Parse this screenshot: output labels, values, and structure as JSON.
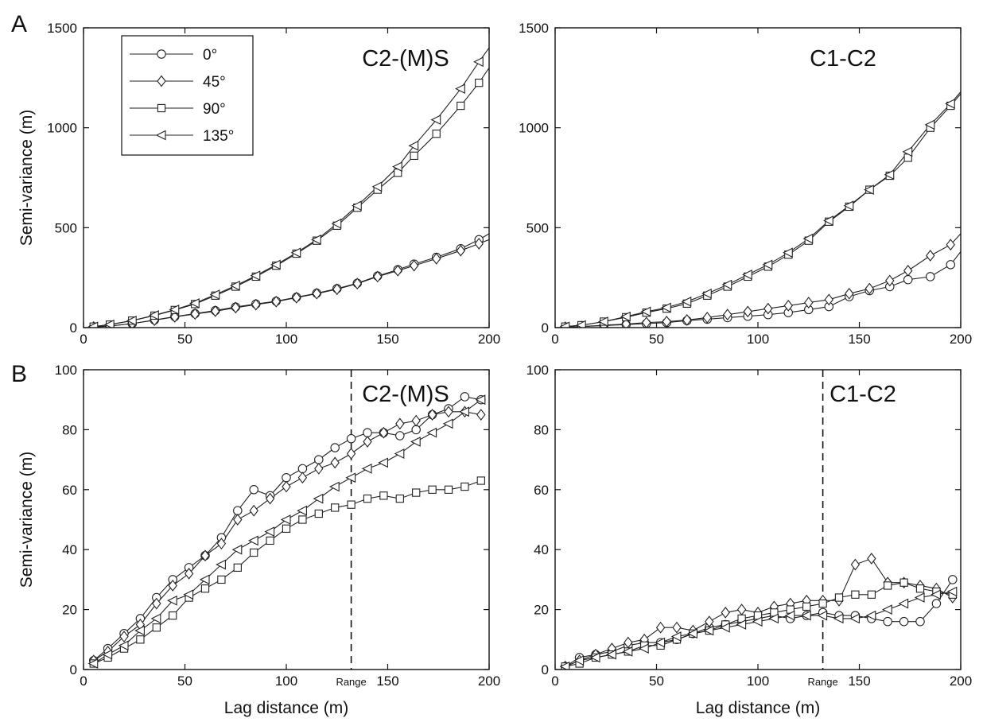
{
  "panel_labels": [
    "A",
    "B"
  ],
  "legend": {
    "entries": [
      {
        "label": "0°",
        "marker": "circle"
      },
      {
        "label": "45°",
        "marker": "diamond"
      },
      {
        "label": "90°",
        "marker": "square"
      },
      {
        "label": "135°",
        "marker": "triangle-left"
      }
    ]
  },
  "chart_data": [
    {
      "type": "line",
      "panel": "A",
      "title": "C2-(M)S",
      "xlabel": "",
      "ylabel": "Semi-variance (m)",
      "xlim": [
        0,
        200
      ],
      "ylim": [
        0,
        1500
      ],
      "xticks": [
        "0",
        "50",
        "100",
        "150",
        "200"
      ],
      "yticks": [
        "0",
        "500",
        "1000",
        "1500"
      ],
      "legend_position": "top-left",
      "series": [
        {
          "name": "0°",
          "marker": "circle",
          "x": [
            5,
            13,
            24,
            35,
            45,
            55,
            65,
            75,
            85,
            95,
            105,
            115,
            125,
            135,
            145,
            155,
            163,
            174,
            186,
            195,
            200
          ],
          "y": [
            3,
            8,
            20,
            38,
            55,
            70,
            85,
            103,
            118,
            132,
            152,
            172,
            195,
            222,
            258,
            290,
            318,
            352,
            395,
            440,
            470
          ]
        },
        {
          "name": "45°",
          "marker": "diamond",
          "x": [
            5,
            13,
            24,
            35,
            45,
            55,
            65,
            75,
            85,
            95,
            105,
            115,
            125,
            135,
            145,
            155,
            163,
            174,
            186,
            195,
            200
          ],
          "y": [
            3,
            8,
            20,
            37,
            54,
            68,
            82,
            100,
            115,
            130,
            150,
            170,
            192,
            220,
            255,
            285,
            310,
            345,
            385,
            420,
            440
          ]
        },
        {
          "name": "90°",
          "marker": "square",
          "x": [
            5,
            13,
            24,
            35,
            45,
            55,
            65,
            75,
            85,
            95,
            105,
            115,
            125,
            135,
            145,
            155,
            163,
            174,
            186,
            195,
            200
          ],
          "y": [
            5,
            15,
            35,
            60,
            88,
            118,
            160,
            205,
            255,
            310,
            370,
            435,
            510,
            600,
            690,
            775,
            860,
            970,
            1110,
            1225,
            1300
          ]
        },
        {
          "name": "135°",
          "marker": "triangle-left",
          "x": [
            5,
            13,
            24,
            35,
            45,
            55,
            65,
            75,
            85,
            95,
            105,
            115,
            125,
            135,
            145,
            155,
            163,
            174,
            186,
            195,
            200
          ],
          "y": [
            5,
            15,
            35,
            62,
            90,
            122,
            165,
            210,
            260,
            315,
            375,
            440,
            520,
            610,
            705,
            805,
            910,
            1040,
            1195,
            1330,
            1400
          ]
        }
      ]
    },
    {
      "type": "line",
      "panel": "A",
      "title": "C1-C2",
      "xlabel": "",
      "ylabel": "",
      "xlim": [
        0,
        200
      ],
      "ylim": [
        0,
        1500
      ],
      "xticks": [
        "0",
        "50",
        "100",
        "150",
        "200"
      ],
      "yticks": [
        "0",
        "500",
        "1000",
        "1500"
      ],
      "series": [
        {
          "name": "0°",
          "marker": "circle",
          "x": [
            5,
            13,
            24,
            35,
            45,
            55,
            65,
            75,
            85,
            95,
            105,
            115,
            125,
            135,
            145,
            155,
            165,
            174,
            185,
            195,
            200
          ],
          "y": [
            2,
            5,
            10,
            15,
            20,
            25,
            35,
            42,
            50,
            57,
            65,
            75,
            90,
            105,
            155,
            185,
            205,
            240,
            255,
            315,
            380
          ]
        },
        {
          "name": "45°",
          "marker": "diamond",
          "x": [
            5,
            13,
            24,
            35,
            45,
            55,
            65,
            75,
            85,
            95,
            105,
            115,
            125,
            135,
            145,
            155,
            165,
            174,
            185,
            195,
            200
          ],
          "y": [
            2,
            5,
            12,
            18,
            25,
            30,
            38,
            50,
            65,
            80,
            95,
            110,
            125,
            140,
            170,
            195,
            235,
            285,
            360,
            415,
            470
          ]
        },
        {
          "name": "90°",
          "marker": "square",
          "x": [
            5,
            13,
            24,
            35,
            45,
            55,
            65,
            75,
            85,
            95,
            105,
            115,
            125,
            135,
            145,
            155,
            165,
            174,
            185,
            195,
            200
          ],
          "y": [
            5,
            12,
            30,
            52,
            75,
            95,
            120,
            160,
            205,
            255,
            305,
            365,
            435,
            530,
            605,
            690,
            760,
            850,
            1000,
            1110,
            1170
          ]
        },
        {
          "name": "135°",
          "marker": "triangle-left",
          "x": [
            5,
            13,
            24,
            35,
            45,
            55,
            65,
            75,
            85,
            95,
            105,
            115,
            125,
            135,
            145,
            155,
            165,
            174,
            185,
            195,
            200
          ],
          "y": [
            5,
            12,
            30,
            55,
            80,
            100,
            130,
            170,
            215,
            265,
            315,
            375,
            445,
            535,
            610,
            690,
            765,
            880,
            1015,
            1120,
            1180
          ]
        }
      ]
    },
    {
      "type": "line",
      "panel": "B",
      "title": "C2-(M)S",
      "xlabel": "Lag distance (m)",
      "ylabel": "Semi-variance (m)",
      "xlim": [
        0,
        200
      ],
      "ylim": [
        0,
        100
      ],
      "xticks": [
        "0",
        "50",
        "100",
        "Range",
        "150",
        "200"
      ],
      "yticks": [
        "0",
        "20",
        "40",
        "60",
        "80",
        "100"
      ],
      "range_marker": {
        "x": 132,
        "label": "Range"
      },
      "series": [
        {
          "name": "0°",
          "marker": "circle",
          "x": [
            5,
            12,
            20,
            28,
            36,
            44,
            52,
            60,
            68,
            76,
            84,
            92,
            100,
            108,
            116,
            124,
            132,
            140,
            148,
            156,
            164,
            172,
            180,
            188,
            196
          ],
          "y": [
            3,
            7,
            12,
            17,
            24,
            30,
            34,
            38,
            44,
            53,
            60,
            58,
            64,
            67,
            70,
            74,
            77,
            79,
            79,
            78,
            80,
            85,
            87,
            91,
            90
          ]
        },
        {
          "name": "45°",
          "marker": "diamond",
          "x": [
            5,
            12,
            20,
            28,
            36,
            44,
            52,
            60,
            68,
            76,
            84,
            92,
            100,
            108,
            116,
            124,
            132,
            140,
            148,
            156,
            164,
            172,
            180,
            188,
            196
          ],
          "y": [
            3,
            6,
            11,
            15,
            22,
            28,
            32,
            38,
            42,
            50,
            53,
            57,
            61,
            64,
            67,
            69,
            72,
            76,
            79,
            82,
            83,
            85,
            86,
            86,
            85
          ]
        },
        {
          "name": "90°",
          "marker": "square",
          "x": [
            5,
            12,
            20,
            28,
            36,
            44,
            52,
            60,
            68,
            76,
            84,
            92,
            100,
            108,
            116,
            124,
            132,
            140,
            148,
            156,
            164,
            172,
            180,
            188,
            196
          ],
          "y": [
            2,
            4,
            7,
            10,
            14,
            18,
            24,
            27,
            30,
            34,
            39,
            43,
            47,
            50,
            52,
            54,
            55,
            57,
            58,
            57,
            59,
            60,
            60,
            61,
            63
          ]
        },
        {
          "name": "135°",
          "marker": "triangle-left",
          "x": [
            5,
            12,
            20,
            28,
            36,
            44,
            52,
            60,
            68,
            76,
            84,
            92,
            100,
            108,
            116,
            124,
            132,
            140,
            148,
            156,
            164,
            172,
            180,
            188,
            196
          ],
          "y": [
            2,
            5,
            8,
            13,
            17,
            23,
            25,
            30,
            35,
            40,
            43,
            46,
            50,
            53,
            57,
            61,
            64,
            67,
            69,
            72,
            76,
            79,
            82,
            86,
            90
          ]
        }
      ]
    },
    {
      "type": "line",
      "panel": "B",
      "title": "C1-C2",
      "xlabel": "Lag distance (m)",
      "ylabel": "",
      "xlim": [
        0,
        200
      ],
      "ylim": [
        0,
        100
      ],
      "xticks": [
        "0",
        "50",
        "100",
        "Range",
        "150",
        "200"
      ],
      "yticks": [
        "0",
        "20",
        "40",
        "60",
        "80",
        "100"
      ],
      "range_marker": {
        "x": 132,
        "label": "Range"
      },
      "series": [
        {
          "name": "0°",
          "marker": "circle",
          "x": [
            5,
            12,
            20,
            28,
            36,
            44,
            52,
            60,
            68,
            76,
            84,
            92,
            100,
            108,
            116,
            124,
            132,
            140,
            148,
            156,
            164,
            172,
            180,
            188,
            196
          ],
          "y": [
            1,
            4,
            5,
            6,
            8,
            9,
            9,
            10,
            12,
            14,
            15,
            16,
            17,
            18,
            17,
            18,
            19,
            18,
            18,
            17,
            16,
            16,
            16,
            22,
            30
          ]
        },
        {
          "name": "45°",
          "marker": "diamond",
          "x": [
            5,
            12,
            20,
            28,
            36,
            44,
            52,
            60,
            68,
            76,
            84,
            92,
            100,
            108,
            116,
            124,
            132,
            140,
            148,
            156,
            164,
            172,
            180,
            188,
            196
          ],
          "y": [
            1,
            3,
            5,
            7,
            9,
            10,
            14,
            14,
            13,
            16,
            19,
            20,
            19,
            21,
            22,
            23,
            23,
            23,
            35,
            37,
            29,
            29,
            28,
            27,
            24
          ]
        },
        {
          "name": "90°",
          "marker": "square",
          "x": [
            5,
            12,
            20,
            28,
            36,
            44,
            52,
            60,
            68,
            76,
            84,
            92,
            100,
            108,
            116,
            124,
            132,
            140,
            148,
            156,
            164,
            172,
            180,
            188,
            196
          ],
          "y": [
            1,
            2,
            4,
            5,
            6,
            8,
            8,
            10,
            12,
            13,
            15,
            17,
            18,
            19,
            20,
            21,
            22,
            24,
            25,
            25,
            28,
            29,
            27,
            26,
            25
          ]
        },
        {
          "name": "135°",
          "marker": "triangle-left",
          "x": [
            5,
            12,
            20,
            28,
            36,
            44,
            52,
            60,
            68,
            76,
            84,
            92,
            100,
            108,
            116,
            124,
            132,
            140,
            148,
            156,
            164,
            172,
            180,
            188,
            196
          ],
          "y": [
            1,
            3,
            4,
            5,
            6,
            7,
            9,
            11,
            12,
            13,
            14,
            15,
            16,
            17,
            18,
            18,
            18,
            17,
            17,
            18,
            20,
            22,
            24,
            25,
            26
          ]
        }
      ]
    }
  ]
}
